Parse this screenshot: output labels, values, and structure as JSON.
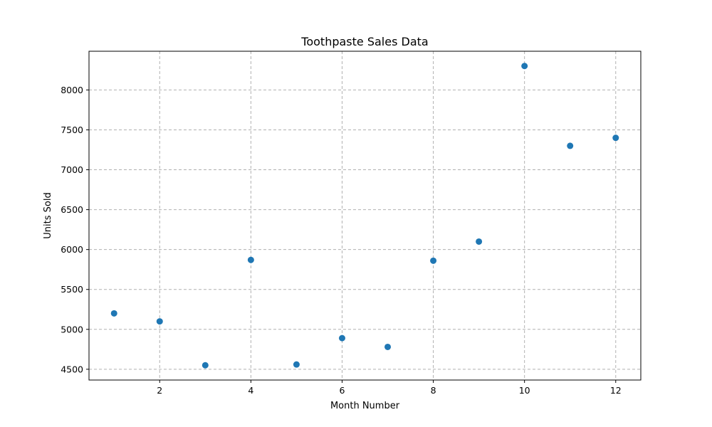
{
  "chart_data": {
    "type": "scatter",
    "title": "Toothpaste Sales Data",
    "xlabel": "Month Number",
    "ylabel": "Units Sold",
    "x": [
      1,
      2,
      3,
      4,
      5,
      6,
      7,
      8,
      9,
      10,
      11,
      12
    ],
    "y": [
      5200,
      5100,
      4550,
      5870,
      4560,
      4890,
      4780,
      5860,
      6100,
      8300,
      7300,
      7400
    ],
    "xlim": [
      0.45,
      12.55
    ],
    "ylim": [
      4365,
      8485
    ],
    "xticks": [
      2,
      4,
      6,
      8,
      10,
      12
    ],
    "yticks": [
      4500,
      5000,
      5500,
      6000,
      6500,
      7000,
      7500,
      8000
    ],
    "grid": true,
    "marker_color": "#1f77b4"
  }
}
